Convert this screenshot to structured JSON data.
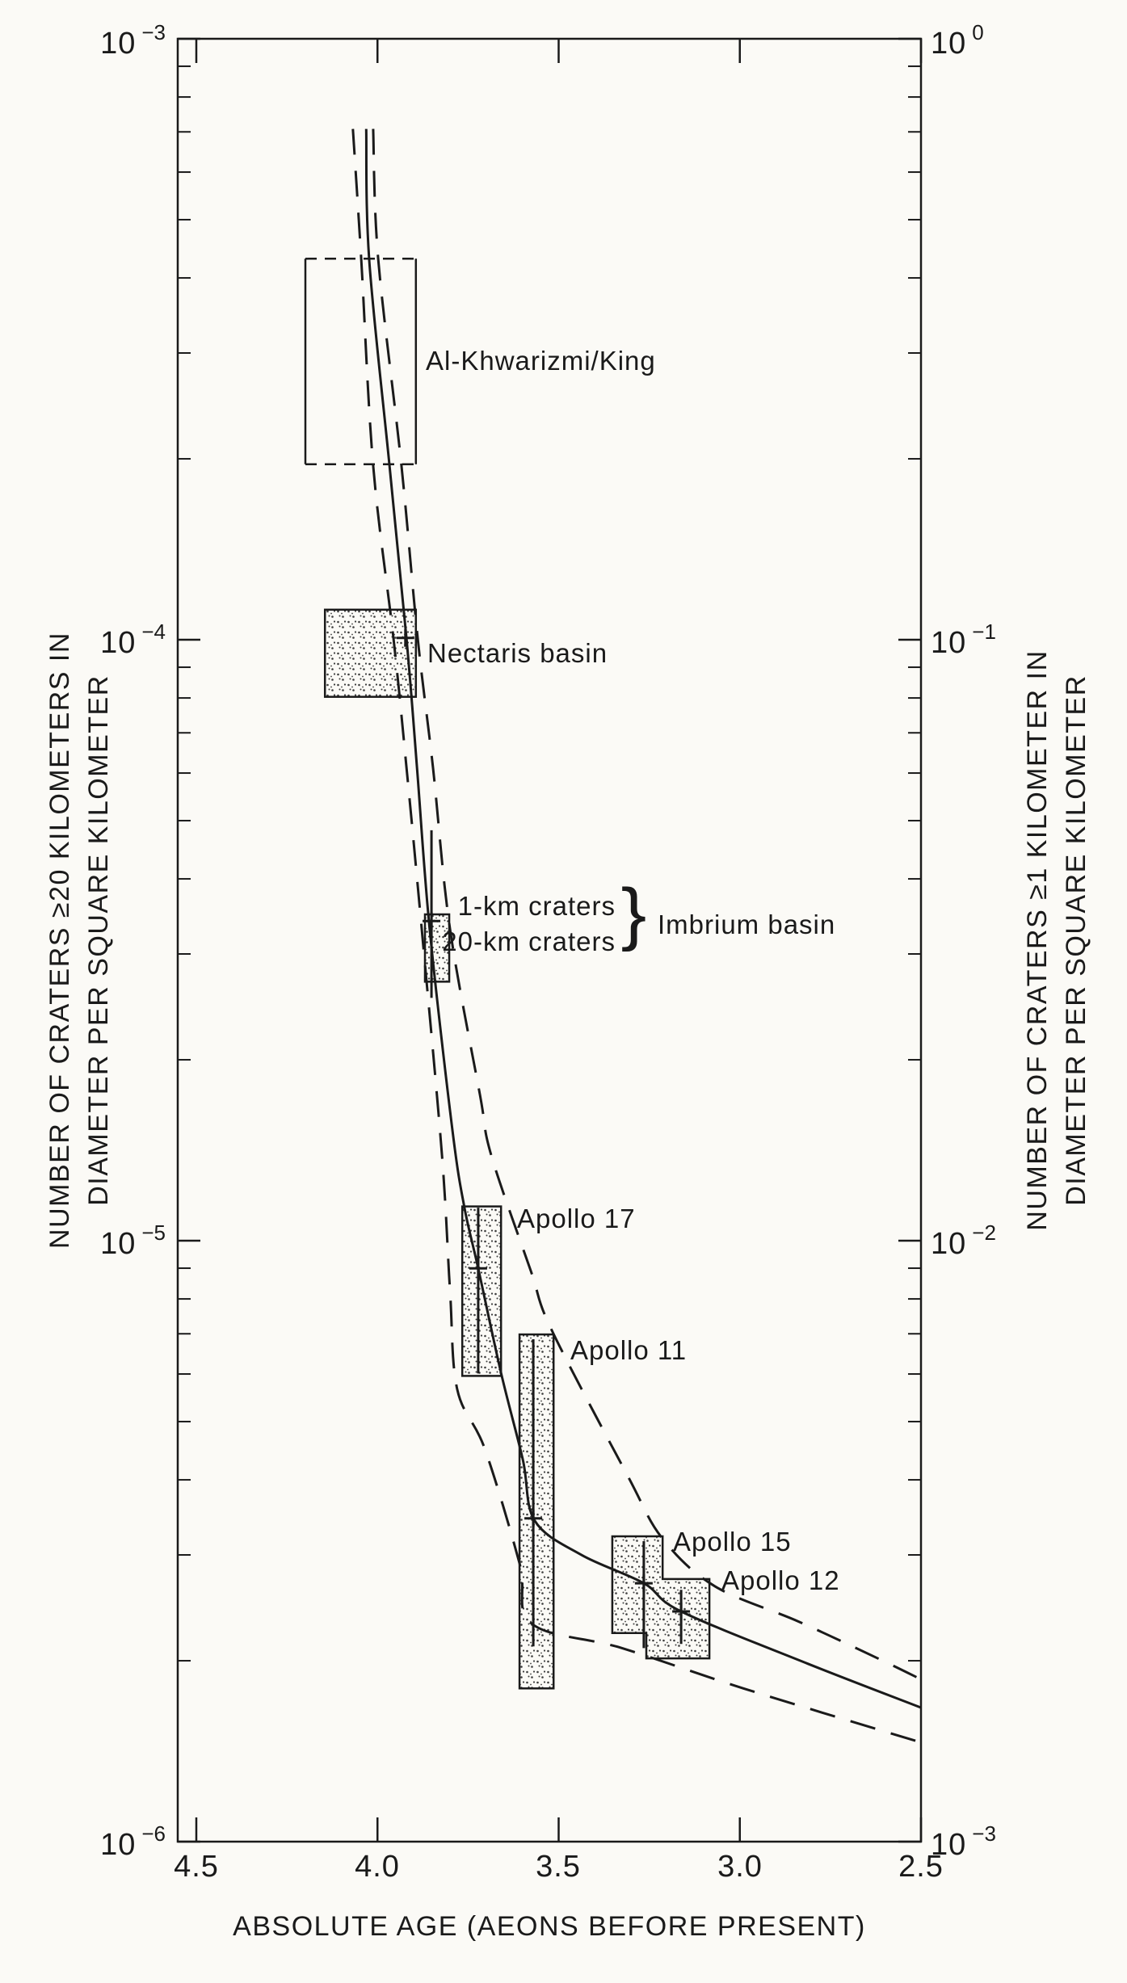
{
  "chart_data": {
    "type": "line",
    "xlabel": "ABSOLUTE AGE (AEONS BEFORE PRESENT)",
    "ylabel_left_line1": "NUMBER OF CRATERS ≥20 KILOMETERS IN",
    "ylabel_left_line2": "DIAMETER PER SQUARE KILOMETER",
    "ylabel_right_line1": "NUMBER OF CRATERS ≥1 KILOMETER IN",
    "ylabel_right_line2": "DIAMETER PER SQUARE KILOMETER",
    "grid": "off",
    "x_axis": {
      "unit": "aeons before present",
      "range": [
        4.55,
        2.5
      ],
      "ticks": [
        4.5,
        4.0,
        3.5,
        3.0,
        2.5
      ],
      "labels": [
        "4.5",
        "4.0",
        "3.5",
        "3.0",
        "2.5"
      ]
    },
    "y_axis_left": {
      "scale": "log",
      "range_log10": [
        -3,
        -6
      ],
      "tick_labels": [
        {
          "base": "10",
          "exp": "−3"
        },
        {
          "base": "10",
          "exp": "−4"
        },
        {
          "base": "10",
          "exp": "−5"
        },
        {
          "base": "10",
          "exp": "−6"
        }
      ]
    },
    "y_axis_right": {
      "scale": "log",
      "range_log10": [
        0,
        -3
      ],
      "tick_labels": [
        {
          "base": "10",
          "exp": "0"
        },
        {
          "base": "10",
          "exp": "−1"
        },
        {
          "base": "10",
          "exp": "−2"
        },
        {
          "base": "10",
          "exp": "−3"
        }
      ]
    },
    "series": [
      {
        "name": "upper-envelope",
        "style": "dashed",
        "points_age_log10n20": [
          [
            4.012,
            -3.15
          ],
          [
            3.998,
            -3.366
          ],
          [
            3.934,
            -3.71
          ],
          [
            3.889,
            -3.997
          ],
          [
            3.847,
            -4.212
          ],
          [
            3.8,
            -4.481
          ],
          [
            3.717,
            -4.758
          ],
          [
            3.686,
            -4.858
          ],
          [
            3.577,
            -5.05
          ],
          [
            3.519,
            -5.149
          ],
          [
            3.309,
            -5.392
          ],
          [
            3.213,
            -5.496
          ],
          [
            3.069,
            -5.575
          ],
          [
            2.837,
            -5.634
          ],
          [
            2.605,
            -5.699
          ],
          [
            2.5,
            -5.73
          ]
        ]
      },
      {
        "name": "best-estimate",
        "style": "solid",
        "points_age_log10n20": [
          [
            4.031,
            -3.15
          ],
          [
            4.023,
            -3.366
          ],
          [
            3.967,
            -3.71
          ],
          [
            3.92,
            -3.997
          ],
          [
            3.891,
            -4.212
          ],
          [
            3.856,
            -4.481
          ],
          [
            3.793,
            -4.817
          ],
          [
            3.76,
            -4.945
          ],
          [
            3.722,
            -5.046
          ],
          [
            3.659,
            -5.22
          ],
          [
            3.599,
            -5.364
          ],
          [
            3.566,
            -5.466
          ],
          [
            3.437,
            -5.523
          ],
          [
            3.265,
            -5.57
          ],
          [
            3.162,
            -5.617
          ],
          [
            2.812,
            -5.704
          ],
          [
            2.5,
            -5.777
          ]
        ]
      },
      {
        "name": "lower-envelope",
        "style": "dashed",
        "points_age_log10n20": [
          [
            4.068,
            -3.15
          ],
          [
            4.045,
            -3.366
          ],
          [
            4.012,
            -3.71
          ],
          [
            3.956,
            -3.997
          ],
          [
            3.92,
            -4.212
          ],
          [
            3.878,
            -4.481
          ],
          [
            3.822,
            -4.858
          ],
          [
            3.8,
            -5.082
          ],
          [
            3.78,
            -5.247
          ],
          [
            3.704,
            -5.346
          ],
          [
            3.608,
            -5.537
          ],
          [
            3.575,
            -5.637
          ],
          [
            3.325,
            -5.678
          ],
          [
            2.99,
            -5.745
          ],
          [
            2.5,
            -5.835
          ]
        ]
      }
    ],
    "boxes": [
      {
        "name": "al-khwarizmi-king",
        "age": [
          4.199,
          3.894
        ],
        "log10n20": [
          -3.366,
          -3.708
        ],
        "fill": "none",
        "outline": "dashed-top-bottom"
      },
      {
        "name": "nectaris-basin",
        "age": [
          4.145,
          3.894
        ],
        "log10n20": [
          -3.95,
          -4.095
        ],
        "fill": "stipple",
        "outline": "solid"
      },
      {
        "name": "imbrium-20km-craters",
        "age": [
          3.869,
          3.802
        ],
        "log10n20": [
          -4.457,
          -4.569
        ],
        "fill": "stipple",
        "outline": "solid"
      },
      {
        "name": "apollo-17",
        "age": [
          3.766,
          3.659
        ],
        "log10n20": [
          -4.943,
          -5.225
        ],
        "fill": "stipple",
        "outline": "solid"
      },
      {
        "name": "apollo-11",
        "age": [
          3.608,
          3.514
        ],
        "log10n20": [
          -5.156,
          -5.745
        ],
        "fill": "stipple",
        "outline": "solid"
      }
    ],
    "step_polygon": {
      "name": "apollo-15-apollo-12",
      "fill": "stipple",
      "points_age_log10n20": [
        [
          3.352,
          -5.492
        ],
        [
          3.213,
          -5.492
        ],
        [
          3.213,
          -5.563
        ],
        [
          3.084,
          -5.563
        ],
        [
          3.084,
          -5.695
        ],
        [
          3.258,
          -5.695
        ],
        [
          3.258,
          -5.653
        ],
        [
          3.352,
          -5.653
        ]
      ]
    },
    "markers": [
      {
        "name": "nectaris-basin",
        "age": 3.923,
        "log10n20": -3.997,
        "bar": null
      },
      {
        "name": "imbrium-1km-craters",
        "age": 3.851,
        "log10n20": -4.468,
        "bar": [
          -4.317,
          -4.596
        ]
      },
      {
        "name": "apollo-17",
        "age": 3.722,
        "log10n20": -5.046,
        "bar": [
          -4.945,
          -5.221
        ]
      },
      {
        "name": "apollo-11",
        "age": 3.57,
        "log10n20": -5.462,
        "bar": [
          -5.164,
          -5.675
        ]
      },
      {
        "name": "apollo-15",
        "age": 3.265,
        "log10n20": -5.57,
        "bar": [
          -5.5,
          -5.678
        ]
      },
      {
        "name": "apollo-12",
        "age": 3.162,
        "log10n20": -5.617,
        "bar": [
          -5.581,
          -5.671
        ]
      }
    ],
    "annotations": [
      {
        "name": "al-khwarizmi-king",
        "text": "Al-Khwarizmi/King"
      },
      {
        "name": "nectaris-basin",
        "text": "Nectaris basin"
      },
      {
        "name": "imbrium-1km",
        "text": "1-km craters"
      },
      {
        "name": "imbrium-20km",
        "text": "20-km craters"
      },
      {
        "name": "imbrium-brace",
        "text": "}"
      },
      {
        "name": "imbrium-basin",
        "text": "Imbrium basin"
      },
      {
        "name": "apollo-17",
        "text": "Apollo 17"
      },
      {
        "name": "apollo-11",
        "text": "Apollo 11"
      },
      {
        "name": "apollo-15",
        "text": "Apollo 15"
      },
      {
        "name": "apollo-12",
        "text": "Apollo 12"
      }
    ],
    "colors": {
      "ink": "#1a1a1a",
      "paper": "#fbfaf6"
    }
  }
}
